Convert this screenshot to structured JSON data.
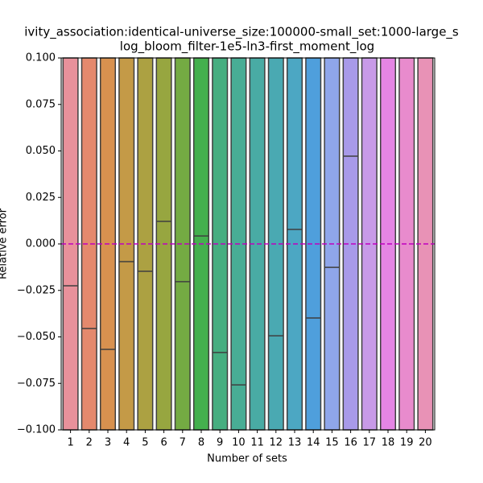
{
  "chart_data": {
    "type": "box",
    "title": [
      "ivity_association:identical-universe_size:100000-small_set:1000-large_s",
      "log_bloom_filter-1e5-ln3-first_moment_log"
    ],
    "x_label": "Number of sets",
    "y_label": "Relative error",
    "categories": [
      "1",
      "2",
      "3",
      "4",
      "5",
      "6",
      "7",
      "8",
      "9",
      "10",
      "11",
      "12",
      "13",
      "14",
      "15",
      "16",
      "17",
      "18",
      "19",
      "20"
    ],
    "medians": [
      -0.0225,
      -0.0455,
      -0.0567,
      -0.0095,
      -0.0147,
      0.0121,
      -0.0203,
      0.0043,
      -0.0584,
      -0.0758,
      null,
      -0.0494,
      0.0078,
      -0.0398,
      -0.0126,
      0.0472,
      null,
      null,
      null,
      null
    ],
    "colors": [
      "#e8919b",
      "#e4896d",
      "#d8914f",
      "#c49a47",
      "#aca142",
      "#97a640",
      "#74ab43",
      "#44b04e",
      "#46ae80",
      "#48ad95",
      "#49aba4",
      "#4aa9b2",
      "#4ca7c3",
      "#4f9fdc",
      "#8fa6ea",
      "#a89ae9",
      "#c89ae8",
      "#e585e4",
      "#e88bcd",
      "#e892b6"
    ],
    "reference_line": {
      "value": 0,
      "color": "#bf00bf"
    },
    "ylim": [
      -0.1,
      0.1
    ],
    "yticks": [
      {
        "value": -0.1,
        "label": "−0.100"
      },
      {
        "value": -0.075,
        "label": "−0.075"
      },
      {
        "value": -0.05,
        "label": "−0.050"
      },
      {
        "value": -0.025,
        "label": "−0.025"
      },
      {
        "value": 0,
        "label": "0.000"
      },
      {
        "value": 0.025,
        "label": "0.025"
      },
      {
        "value": 0.05,
        "label": "0.050"
      },
      {
        "value": 0.075,
        "label": "0.075"
      },
      {
        "value": 0.1,
        "label": "0.100"
      }
    ]
  }
}
